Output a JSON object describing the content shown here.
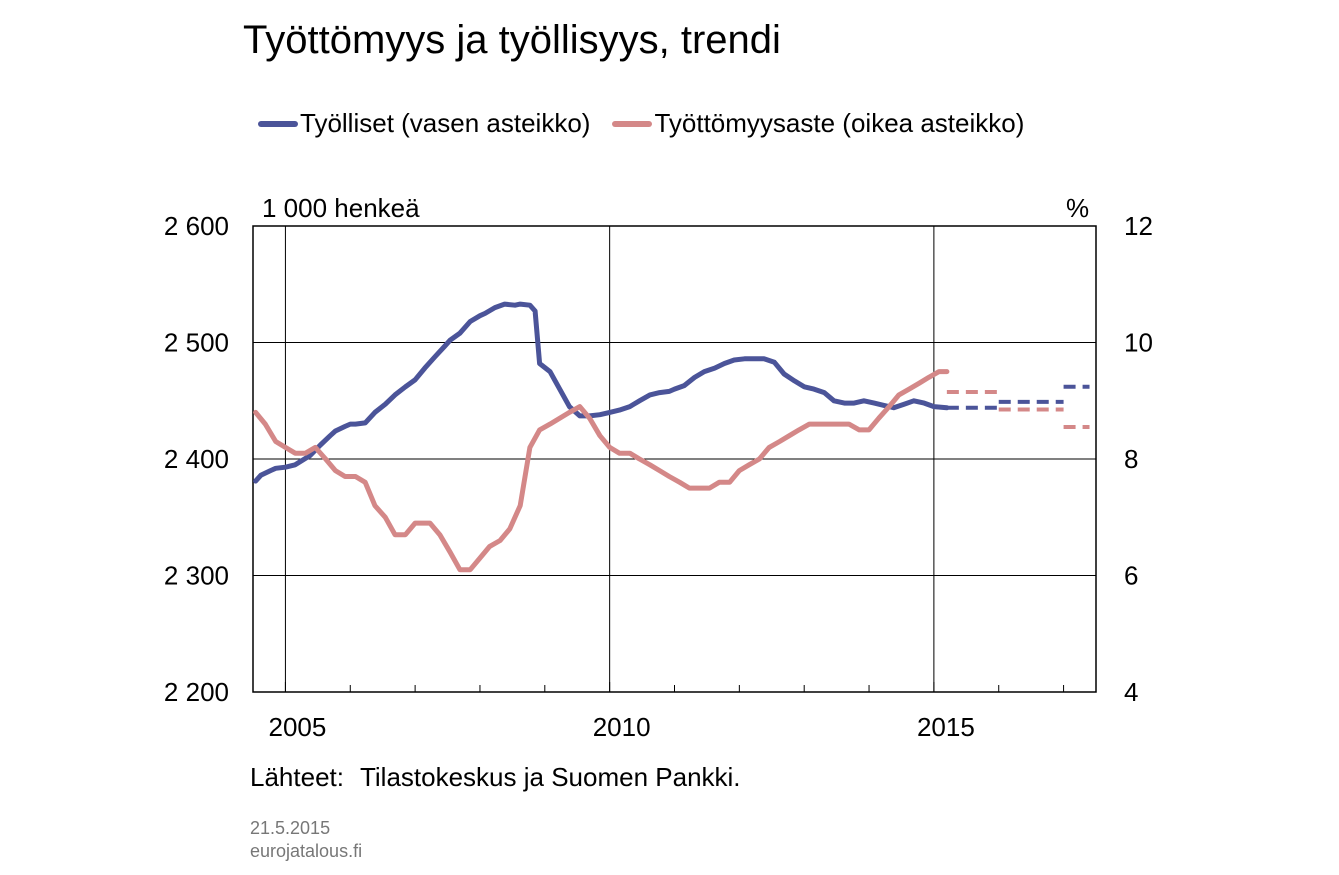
{
  "title": "Työttömyys ja työllisyys, trendi",
  "legend": [
    {
      "label": "Työlliset (vasen asteikko)",
      "color": "#4b5499"
    },
    {
      "label": "Työttömyysaste (oikea asteikko)",
      "color": "#d48888"
    }
  ],
  "unit_left": "1 000 henkeä",
  "unit_right": "%",
  "source_label": "Lähteet:",
  "source_text": "Tilastokeskus ja Suomen Pankki.",
  "date": "21.5.2015",
  "site": "eurojatalous.fi",
  "chart_data": {
    "type": "line",
    "x_range": [
      2004.5,
      2017.5
    ],
    "x_ticks": [
      2005,
      2010,
      2015
    ],
    "y_left": {
      "range": [
        2200,
        2600
      ],
      "ticks": [
        "2 200",
        "2 300",
        "2 400",
        "2 500",
        "2 600"
      ]
    },
    "y_right": {
      "range": [
        4,
        12
      ],
      "ticks": [
        "4",
        "6",
        "8",
        "10",
        "12"
      ]
    },
    "grid": true,
    "legend_position": "top",
    "series": [
      {
        "name": "Työlliset (vasen asteikko)",
        "axis": "left",
        "color": "#4b5499",
        "style": "solid",
        "x": [
          2004.54,
          2004.62,
          2004.77,
          2004.85,
          2005.0,
          2005.15,
          2005.38,
          2005.54,
          2005.69,
          2005.77,
          2005.92,
          2006.0,
          2006.08,
          2006.23,
          2006.38,
          2006.54,
          2006.69,
          2006.85,
          2007.0,
          2007.15,
          2007.31,
          2007.46,
          2007.54,
          2007.69,
          2007.85,
          2008.0,
          2008.08,
          2008.23,
          2008.38,
          2008.54,
          2008.62,
          2008.77,
          2008.85,
          2008.92,
          2009.08,
          2009.23,
          2009.38,
          2009.54,
          2009.69,
          2009.85,
          2010.0,
          2010.15,
          2010.31,
          2010.46,
          2010.62,
          2010.77,
          2010.92,
          2011.0,
          2011.15,
          2011.31,
          2011.46,
          2011.62,
          2011.77,
          2011.92,
          2012.08,
          2012.23,
          2012.38,
          2012.54,
          2012.69,
          2012.85,
          2013.0,
          2013.15,
          2013.31,
          2013.46,
          2013.62,
          2013.77,
          2013.92,
          2014.08,
          2014.23,
          2014.38,
          2014.54,
          2014.69,
          2014.85,
          2015.0,
          2015.2
        ],
        "y": [
          2381,
          2386,
          2390,
          2392,
          2393,
          2395,
          2403,
          2412,
          2420,
          2424,
          2428,
          2430,
          2430,
          2431,
          2440,
          2447,
          2455,
          2462,
          2468,
          2478,
          2488,
          2497,
          2502,
          2508,
          2518,
          2523,
          2525,
          2530,
          2533,
          2532,
          2533,
          2532,
          2527,
          2482,
          2475,
          2460,
          2445,
          2437,
          2437,
          2438,
          2440,
          2442,
          2445,
          2450,
          2455,
          2457,
          2458,
          2460,
          2463,
          2470,
          2475,
          2478,
          2482,
          2485,
          2486,
          2486,
          2486,
          2483,
          2473,
          2467,
          2462,
          2460,
          2457,
          2450,
          2448,
          2448,
          2450,
          2448,
          2446,
          2444,
          2447,
          2450,
          2448,
          2445,
          2444
        ]
      },
      {
        "name": "Työttömyysaste (oikea asteikko)",
        "axis": "right",
        "color": "#d48888",
        "style": "solid",
        "x": [
          2004.54,
          2004.69,
          2004.85,
          2005.0,
          2005.15,
          2005.31,
          2005.46,
          2005.62,
          2005.77,
          2005.92,
          2006.08,
          2006.23,
          2006.38,
          2006.54,
          2006.69,
          2006.85,
          2007.0,
          2007.08,
          2007.23,
          2007.38,
          2007.54,
          2007.69,
          2007.85,
          2008.0,
          2008.15,
          2008.31,
          2008.46,
          2008.62,
          2008.77,
          2008.92,
          2009.08,
          2009.23,
          2009.38,
          2009.54,
          2009.69,
          2009.85,
          2010.0,
          2010.15,
          2010.31,
          2010.46,
          2010.62,
          2010.77,
          2010.92,
          2011.08,
          2011.23,
          2011.38,
          2011.54,
          2011.69,
          2011.85,
          2012.0,
          2012.15,
          2012.31,
          2012.46,
          2012.62,
          2012.77,
          2012.92,
          2013.08,
          2013.23,
          2013.38,
          2013.54,
          2013.69,
          2013.85,
          2014.0,
          2014.15,
          2014.31,
          2014.46,
          2014.62,
          2014.77,
          2014.92,
          2015.08,
          2015.2
        ],
        "y": [
          8.8,
          8.6,
          8.3,
          8.2,
          8.1,
          8.1,
          8.2,
          8.0,
          7.8,
          7.7,
          7.7,
          7.6,
          7.2,
          7.0,
          6.7,
          6.7,
          6.9,
          6.9,
          6.9,
          6.7,
          6.4,
          6.1,
          6.1,
          6.3,
          6.5,
          6.6,
          6.8,
          7.2,
          8.2,
          8.5,
          8.6,
          8.7,
          8.8,
          8.9,
          8.7,
          8.4,
          8.2,
          8.1,
          8.1,
          8.0,
          7.9,
          7.8,
          7.7,
          7.6,
          7.5,
          7.5,
          7.5,
          7.6,
          7.6,
          7.8,
          7.9,
          8.0,
          8.2,
          8.3,
          8.4,
          8.5,
          8.6,
          8.6,
          8.6,
          8.6,
          8.6,
          8.5,
          8.5,
          8.7,
          8.9,
          9.1,
          9.2,
          9.3,
          9.4,
          9.5,
          9.5
        ]
      },
      {
        "name": "",
        "axis": "left",
        "color": "#4b5499",
        "style": "dashed",
        "segments": [
          {
            "x": [
              2015.2,
              2016.0
            ],
            "y": 2444
          },
          {
            "x": [
              2016.0,
              2017.0
            ],
            "y": 2449
          },
          {
            "x": [
              2017.0,
              2017.4
            ],
            "y": 2462
          }
        ]
      },
      {
        "name": "",
        "axis": "right",
        "color": "#d48888",
        "style": "dashed",
        "segments": [
          {
            "x": [
              2015.2,
              2016.0
            ],
            "y": 9.15
          },
          {
            "x": [
              2016.0,
              2017.0
            ],
            "y": 8.85
          },
          {
            "x": [
              2017.0,
              2017.4
            ],
            "y": 8.55
          }
        ]
      }
    ]
  }
}
